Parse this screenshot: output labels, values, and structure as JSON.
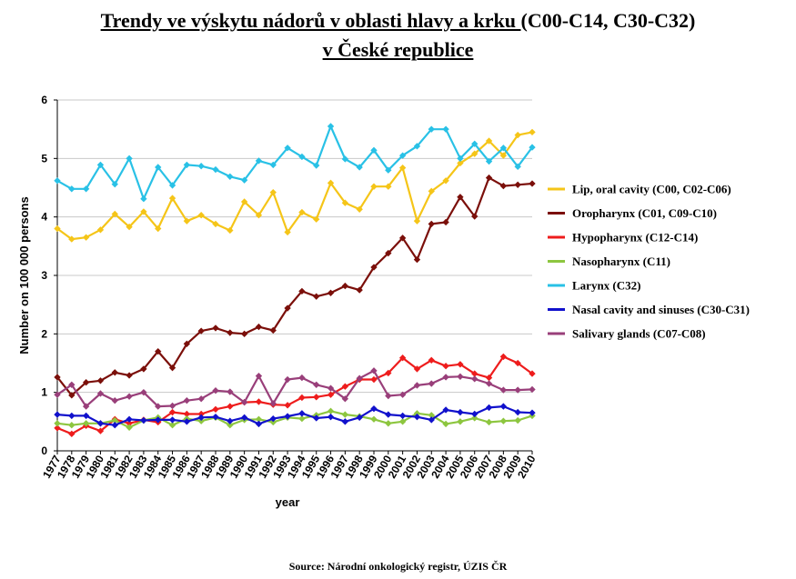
{
  "page": {
    "title_underlined": "Trendy ve výskytu nádorů v oblasti hlavy a krku ",
    "title_rest": "(C00-C14, C30-C32)",
    "subtitle": "v České republice",
    "source": "Source: Národní onkologický registr, ÚZIS ČR"
  },
  "chart_data": {
    "type": "line",
    "xlabel": "year",
    "ylabel": "Number on 100 000 persons",
    "ylim": [
      0,
      6
    ],
    "yticks": [
      0,
      1,
      2,
      3,
      4,
      5,
      6
    ],
    "grid": true,
    "legend_position": "right",
    "x": [
      "1977",
      "1978",
      "1979",
      "1980",
      "1981",
      "1982",
      "1983",
      "1984",
      "1985",
      "1986",
      "1987",
      "1988",
      "1989",
      "1990",
      "1991",
      "1992",
      "1993",
      "1994",
      "1995",
      "1996",
      "1997",
      "1998",
      "1999",
      "2000",
      "2001",
      "2002",
      "2003",
      "2004",
      "2005",
      "2006",
      "2007",
      "2008",
      "2009",
      "2010"
    ],
    "series": [
      {
        "name": "Lip, oral cavity (C00, C02-C06)",
        "color": "#f5c518",
        "values": [
          3.8,
          3.62,
          3.65,
          3.78,
          4.05,
          3.83,
          4.09,
          3.8,
          4.32,
          3.93,
          4.03,
          3.88,
          3.77,
          4.26,
          4.03,
          4.42,
          3.74,
          4.08,
          3.96,
          4.58,
          4.24,
          4.13,
          4.52,
          4.52,
          4.84,
          3.93,
          4.44,
          4.62,
          4.92,
          5.08,
          5.3,
          5.05,
          5.4,
          5.45
        ]
      },
      {
        "name": "Oropharynx (C01, C09-C10)",
        "color": "#7b0f0a",
        "values": [
          1.26,
          0.95,
          1.17,
          1.2,
          1.34,
          1.29,
          1.4,
          1.7,
          1.42,
          1.83,
          2.05,
          2.1,
          2.02,
          2.0,
          2.12,
          2.06,
          2.44,
          2.73,
          2.64,
          2.7,
          2.82,
          2.75,
          3.14,
          3.38,
          3.64,
          3.27,
          3.88,
          3.91,
          4.34,
          4.01,
          4.67,
          4.53,
          4.55,
          4.57
        ]
      },
      {
        "name": "Hypopharynx (C12-C14)",
        "color": "#ee1c1c",
        "values": [
          0.39,
          0.29,
          0.43,
          0.34,
          0.54,
          0.47,
          0.53,
          0.49,
          0.66,
          0.63,
          0.63,
          0.71,
          0.76,
          0.83,
          0.84,
          0.79,
          0.78,
          0.91,
          0.92,
          0.96,
          1.1,
          1.22,
          1.22,
          1.33,
          1.59,
          1.4,
          1.55,
          1.45,
          1.48,
          1.32,
          1.25,
          1.61,
          1.5,
          1.32
        ]
      },
      {
        "name": "Nasopharynx (C11)",
        "color": "#8dc63f",
        "values": [
          0.47,
          0.44,
          0.47,
          0.47,
          0.52,
          0.4,
          0.52,
          0.57,
          0.44,
          0.55,
          0.51,
          0.57,
          0.44,
          0.53,
          0.54,
          0.49,
          0.57,
          0.55,
          0.61,
          0.68,
          0.62,
          0.59,
          0.54,
          0.47,
          0.5,
          0.64,
          0.61,
          0.46,
          0.5,
          0.56,
          0.49,
          0.51,
          0.52,
          0.6
        ]
      },
      {
        "name": "Larynx (C32)",
        "color": "#29c1e6",
        "values": [
          4.62,
          4.48,
          4.48,
          4.89,
          4.56,
          5.0,
          4.31,
          4.85,
          4.54,
          4.89,
          4.87,
          4.81,
          4.69,
          4.63,
          4.96,
          4.89,
          5.18,
          5.03,
          4.88,
          5.55,
          4.99,
          4.85,
          5.14,
          4.8,
          5.05,
          5.21,
          5.5,
          5.5,
          5.0,
          5.25,
          4.95,
          5.18,
          4.86,
          5.19
        ]
      },
      {
        "name": "Nasal cavity and sinuses  (C30-C31)",
        "color": "#1111cc",
        "values": [
          0.62,
          0.6,
          0.6,
          0.47,
          0.44,
          0.54,
          0.52,
          0.53,
          0.53,
          0.5,
          0.57,
          0.58,
          0.51,
          0.57,
          0.46,
          0.55,
          0.59,
          0.64,
          0.56,
          0.58,
          0.5,
          0.57,
          0.72,
          0.62,
          0.6,
          0.58,
          0.53,
          0.7,
          0.66,
          0.63,
          0.74,
          0.76,
          0.66,
          0.65
        ]
      },
      {
        "name": "Salivary glands (C07-C08)",
        "color": "#993f7a",
        "values": [
          0.96,
          1.13,
          0.76,
          0.98,
          0.86,
          0.93,
          1.0,
          0.76,
          0.77,
          0.86,
          0.89,
          1.03,
          1.01,
          0.83,
          1.28,
          0.81,
          1.22,
          1.25,
          1.13,
          1.07,
          0.89,
          1.24,
          1.37,
          0.94,
          0.96,
          1.12,
          1.15,
          1.26,
          1.27,
          1.23,
          1.15,
          1.04,
          1.04,
          1.05
        ]
      }
    ]
  }
}
